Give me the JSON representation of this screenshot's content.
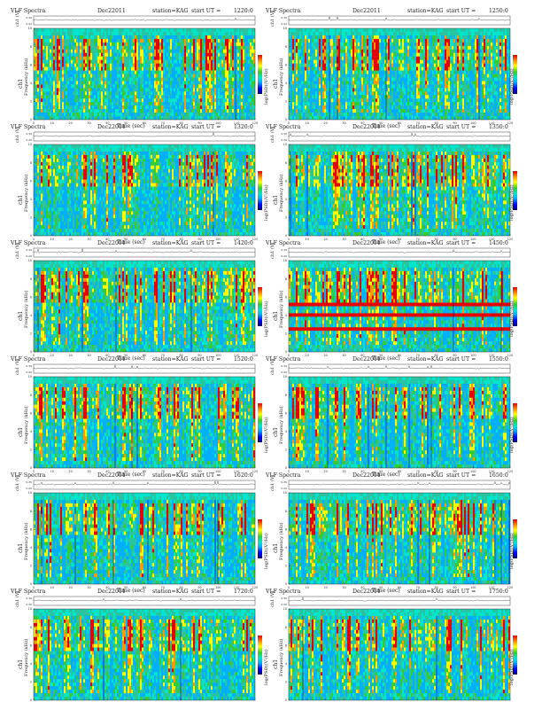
{
  "page": {
    "title": "VLF Spectra"
  },
  "common": {
    "title_prefix": "VLF Spectra",
    "date": "Dec22011",
    "station": "station=KAG",
    "start_prefix": "start  UT  =",
    "ch_label": "ch1",
    "ch_unit": "(V)",
    "freq_label": "Frequency  (kHz)",
    "time_label": "Time  (sec)",
    "cbar_label": "log(PSD)(V²/Hz)",
    "cbar_ticks": [
      "0",
      "-2",
      "-4",
      "-6"
    ],
    "colors": {
      "low": "#0000ff",
      "mid": "#33cc33",
      "high": "#ffff00",
      "max": "#e60000",
      "band_edge": "#00e5ff"
    }
  },
  "panels": [
    {
      "start": "1220:0"
    },
    {
      "start": "1250:0"
    },
    {
      "start": "1320:0"
    },
    {
      "start": "1350:0"
    },
    {
      "start": "1420:0"
    },
    {
      "start": "1450:0"
    },
    {
      "start": "1520:0"
    },
    {
      "start": "1550:0"
    },
    {
      "start": "1620:0"
    },
    {
      "start": "1650:0"
    },
    {
      "start": "1720:0"
    },
    {
      "start": "1750:0"
    }
  ],
  "chart_data": {
    "type": "heatmap",
    "panel_count": 12,
    "x": {
      "label": "Time (sec)",
      "range": [
        0,
        120
      ],
      "ticks": [
        0,
        10,
        20,
        30,
        40,
        50,
        60,
        70,
        80,
        90,
        100,
        110,
        120
      ]
    },
    "y": {
      "label": "Frequency (kHz)",
      "range": [
        0,
        10
      ],
      "ticks": [
        0,
        2,
        4,
        6,
        8,
        10
      ]
    },
    "waveform": {
      "label": "ch1 (V)",
      "range": [
        0.2,
        0.3
      ],
      "ticks": [
        "0.20",
        "0.30"
      ]
    },
    "colorbar": {
      "label": "log(PSD)(V²/Hz)",
      "range": [
        -6,
        0
      ]
    },
    "grid": false
  }
}
